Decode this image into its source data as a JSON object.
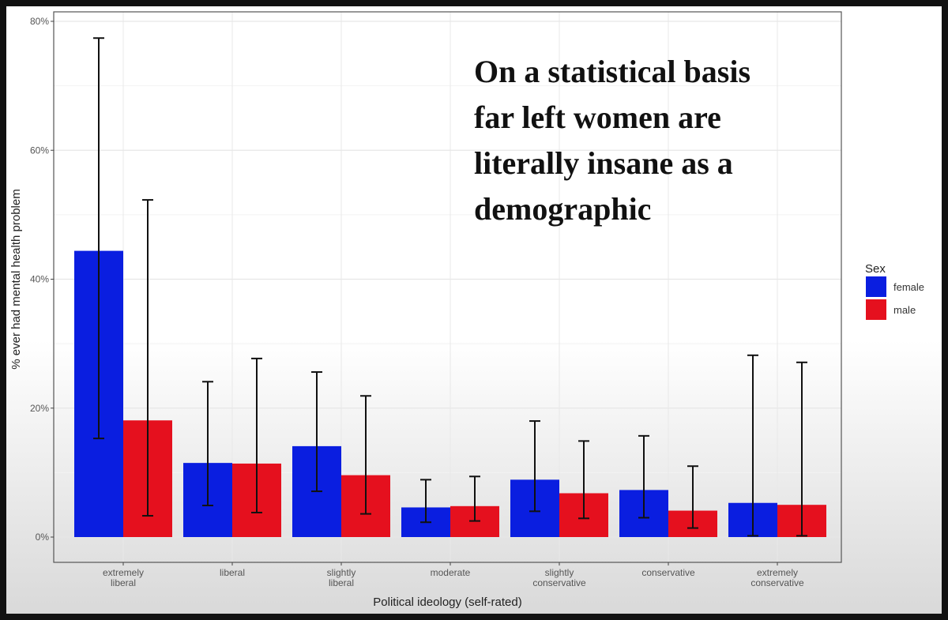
{
  "annotation": "On a statistical basis\nfar left women are\nliterally insane as a\ndemographic",
  "chart_data": {
    "type": "bar",
    "title": "",
    "xlabel": "Political ideology (self-rated)",
    "ylabel": "% ever had mental health problem",
    "ylim": [
      0,
      80
    ],
    "yticks": [
      "0%",
      "20%",
      "40%",
      "60%",
      "80%"
    ],
    "grid": true,
    "legend": {
      "title": "Sex",
      "placement": "right"
    },
    "categories": [
      [
        "extremely",
        "liberal"
      ],
      [
        "liberal"
      ],
      [
        "slightly",
        "liberal"
      ],
      [
        "moderate"
      ],
      [
        "slightly",
        "conservative"
      ],
      [
        "conservative"
      ],
      [
        "extremely",
        "conservative"
      ]
    ],
    "series": [
      {
        "name": "female",
        "color": "#0a1ee0",
        "values": [
          44.4,
          11.5,
          14.1,
          4.6,
          8.9,
          7.3,
          5.3
        ],
        "err_low": [
          15.3,
          4.9,
          7.1,
          2.3,
          4.0,
          3.0,
          0.2
        ],
        "err_high": [
          77.4,
          24.1,
          25.6,
          8.9,
          18.0,
          15.7,
          28.2
        ]
      },
      {
        "name": "male",
        "color": "#e5101e",
        "values": [
          18.1,
          11.4,
          9.6,
          4.8,
          6.8,
          4.1,
          5.0
        ],
        "err_low": [
          3.3,
          3.8,
          3.6,
          2.5,
          2.9,
          1.4,
          0.2
        ],
        "err_high": [
          52.3,
          27.7,
          21.9,
          9.4,
          14.9,
          11.0,
          27.1
        ]
      }
    ]
  }
}
